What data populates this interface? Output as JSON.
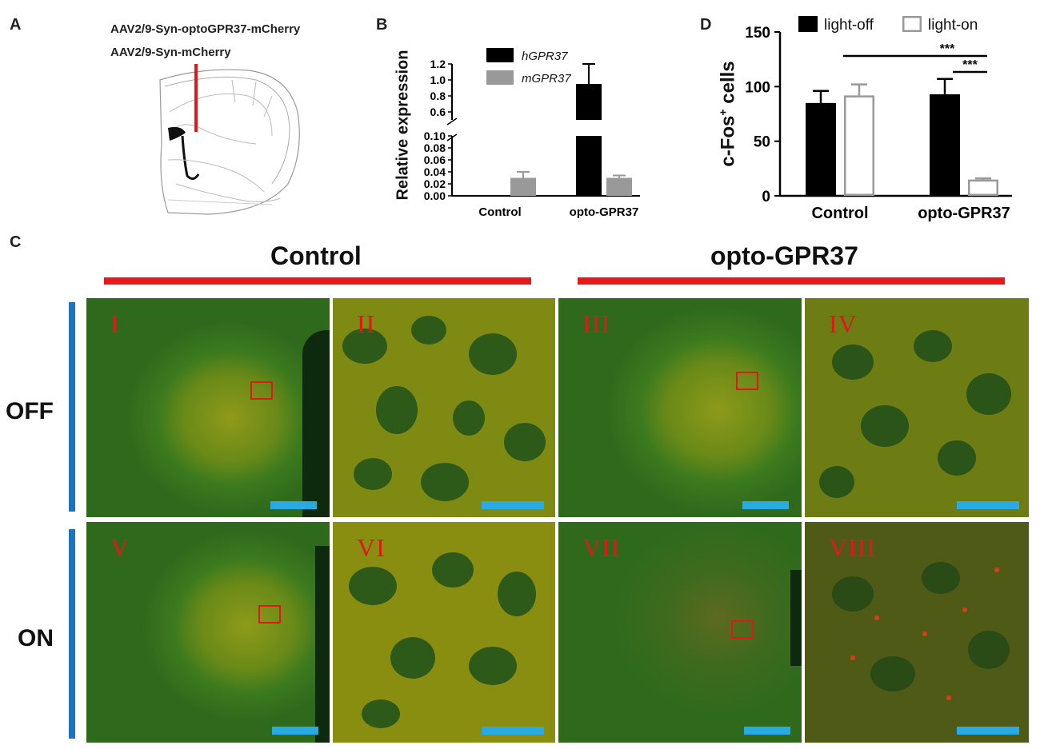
{
  "panel_labels": {
    "A": "A",
    "B": "B",
    "C": "C",
    "D": "D"
  },
  "panelA": {
    "virus1": "AAV2/9-Syn-optoGPR37-mCherry",
    "virus2": "AAV2/9-Syn-mCherry"
  },
  "chart_data": [
    {
      "type": "bar",
      "panel": "B",
      "ylabel": "Relative expression",
      "categories": [
        "Control",
        "opto-GPR37"
      ],
      "y_break": {
        "lower": [
          0,
          0.1
        ],
        "upper": [
          0.5,
          1.2
        ]
      },
      "y_ticks_lower": [
        "0.00",
        "0.02",
        "0.04",
        "0.06",
        "0.08",
        "0.10"
      ],
      "y_ticks_upper": [
        "0.6",
        "0.8",
        "1.0",
        "1.2"
      ],
      "series": [
        {
          "name": "hGPR37",
          "values": [
            0,
            0.95
          ],
          "errors": [
            0,
            0.25
          ],
          "color": "#000000"
        },
        {
          "name": "mGPR37",
          "values": [
            0.03,
            0.03
          ],
          "errors": [
            0.01,
            0.004
          ],
          "color": "#999999"
        }
      ]
    },
    {
      "type": "bar",
      "panel": "D",
      "ylabel": "c-Fos",
      "ylabel_sup": "+",
      "ylabel_suffix": " cells",
      "categories": [
        "Control",
        "opto-GPR37"
      ],
      "ylim": [
        0,
        150
      ],
      "y_ticks": [
        "0",
        "50",
        "100",
        "150"
      ],
      "series": [
        {
          "name": "light-off",
          "values": [
            85,
            93
          ],
          "errors": [
            11,
            14
          ],
          "fill": "#000000",
          "stroke": "#000000"
        },
        {
          "name": "light-on",
          "values": [
            91,
            14
          ],
          "errors": [
            11,
            2
          ],
          "fill": "#ffffff",
          "stroke": "#999999"
        }
      ],
      "significance": [
        "***",
        "***"
      ]
    }
  ],
  "panelC": {
    "group_control": "Control",
    "group_opto": "opto-GPR37",
    "row_off": "OFF",
    "row_on": "ON",
    "numerals": [
      "I",
      "II",
      "III",
      "IV",
      "V",
      "VI",
      "VII",
      "VIII"
    ]
  }
}
